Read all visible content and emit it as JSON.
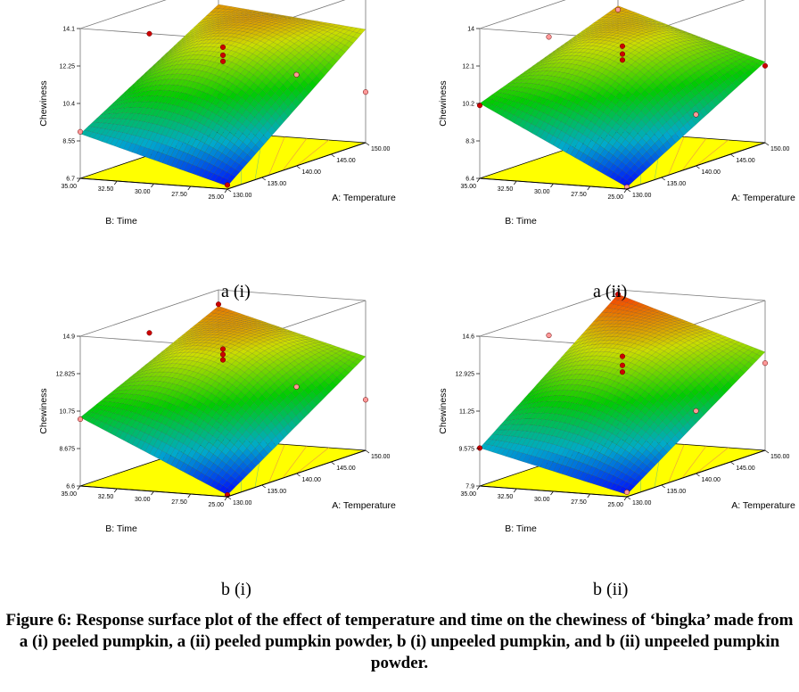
{
  "figure_caption": "Figure 6: Response surface plot of the effect of temperature and time on the chewiness of ‘bingka’ made from a (i) peeled pumpkin, a (ii) peeled pumpkin powder, b (i) unpeeled pumpkin, and b (ii) unpeeled pumpkin powder.",
  "colors": {
    "floor": "#ffff00",
    "point_above": "#cc0000",
    "point_below": "#ff9999",
    "surface_low": "#0000ff",
    "surface_mid": "#00cc00",
    "surface_high": "#ff2200"
  },
  "chart_data": [
    {
      "id": "a-i",
      "caption": "a (i)",
      "type": "surface",
      "zlabel": "Chewiness",
      "xlabel": "A: Temperature",
      "ylabel": "B: Time",
      "x_ticks": [
        "130.00",
        "135.00",
        "140.00",
        "145.00",
        "150.00"
      ],
      "y_ticks": [
        "25.00",
        "27.50",
        "30.00",
        "32.50",
        "35.00"
      ],
      "z_ticks": [
        "6.7",
        "8.55",
        "10.4",
        "12.25",
        "14.1"
      ],
      "xlim": [
        130,
        150
      ],
      "ylim": [
        25,
        35
      ],
      "zlim": [
        6.7,
        14.1
      ],
      "surface_corners": {
        "x_low_y_low": 6.85,
        "x_high_y_low": 12.3,
        "x_low_y_high": 8.9,
        "x_high_y_high": 13.0,
        "x_mid_y_mid": 12.0
      },
      "design_points": [
        {
          "x": 130,
          "y": 25,
          "z": 6.9,
          "above": true
        },
        {
          "x": 150,
          "y": 25,
          "z": 9.2,
          "above": false
        },
        {
          "x": 130,
          "y": 35,
          "z": 9.0,
          "above": false
        },
        {
          "x": 150,
          "y": 35,
          "z": 13.6,
          "above": true
        },
        {
          "x": 140,
          "y": 30,
          "z": 12.3,
          "above": true
        },
        {
          "x": 140,
          "y": 30,
          "z": 11.9,
          "above": true
        },
        {
          "x": 140,
          "y": 30,
          "z": 11.6,
          "above": true
        },
        {
          "x": 140,
          "y": 25,
          "z": 11.2,
          "above": false
        },
        {
          "x": 140,
          "y": 35,
          "z": 12.7,
          "above": true
        }
      ]
    },
    {
      "id": "a-ii",
      "caption": "a (ii)",
      "type": "surface",
      "zlabel": "Chewiness",
      "xlabel": "A: Temperature",
      "ylabel": "B: Time",
      "x_ticks": [
        "130.00",
        "135.00",
        "140.00",
        "145.00",
        "150.00"
      ],
      "y_ticks": [
        "25.00",
        "27.50",
        "30.00",
        "32.50",
        "35.00"
      ],
      "z_ticks": [
        "6.4",
        "8.3",
        "10.2",
        "12.1",
        "14"
      ],
      "xlim": [
        130,
        150
      ],
      "ylim": [
        25,
        35
      ],
      "zlim": [
        6.4,
        14.0
      ],
      "surface_corners": {
        "x_low_y_low": 6.5,
        "x_high_y_low": 10.5,
        "x_low_y_high": 10.2,
        "x_high_y_high": 12.8,
        "x_mid_y_mid": 11.8
      },
      "design_points": [
        {
          "x": 130,
          "y": 25,
          "z": 6.5,
          "above": false
        },
        {
          "x": 150,
          "y": 25,
          "z": 10.3,
          "above": true
        },
        {
          "x": 130,
          "y": 35,
          "z": 10.1,
          "above": true
        },
        {
          "x": 150,
          "y": 35,
          "z": 12.6,
          "above": false
        },
        {
          "x": 140,
          "y": 30,
          "z": 12.2,
          "above": true
        },
        {
          "x": 140,
          "y": 30,
          "z": 11.8,
          "above": true
        },
        {
          "x": 140,
          "y": 30,
          "z": 11.5,
          "above": true
        },
        {
          "x": 140,
          "y": 25,
          "z": 9.0,
          "above": false
        },
        {
          "x": 140,
          "y": 35,
          "z": 12.4,
          "above": false
        }
      ]
    },
    {
      "id": "b-i",
      "caption": "b (i)",
      "type": "surface",
      "zlabel": "Chewiness",
      "xlabel": "A: Temperature",
      "ylabel": "B: Time",
      "x_ticks": [
        "130.00",
        "135.00",
        "140.00",
        "145.00",
        "150.00"
      ],
      "y_ticks": [
        "25.00",
        "27.50",
        "30.00",
        "32.50",
        "35.00"
      ],
      "z_ticks": [
        "6.6",
        "8.675",
        "10.75",
        "12.825",
        "14.9"
      ],
      "xlim": [
        130,
        150
      ],
      "ylim": [
        25,
        35
      ],
      "zlim": [
        6.6,
        14.9
      ],
      "surface_corners": {
        "x_low_y_low": 6.7,
        "x_high_y_low": 11.8,
        "x_low_y_high": 10.4,
        "x_high_y_high": 14.0,
        "x_mid_y_mid": 12.6
      },
      "design_points": [
        {
          "x": 130,
          "y": 25,
          "z": 6.7,
          "above": true
        },
        {
          "x": 150,
          "y": 25,
          "z": 9.4,
          "above": false
        },
        {
          "x": 130,
          "y": 35,
          "z": 10.3,
          "above": false
        },
        {
          "x": 150,
          "y": 35,
          "z": 14.1,
          "above": true
        },
        {
          "x": 140,
          "y": 30,
          "z": 13.2,
          "above": true
        },
        {
          "x": 140,
          "y": 30,
          "z": 12.9,
          "above": true
        },
        {
          "x": 140,
          "y": 30,
          "z": 12.6,
          "above": true
        },
        {
          "x": 140,
          "y": 25,
          "z": 11.4,
          "above": false
        },
        {
          "x": 140,
          "y": 35,
          "z": 13.8,
          "above": true
        }
      ]
    },
    {
      "id": "b-ii",
      "caption": "b (ii)",
      "type": "surface",
      "zlabel": "Chewiness",
      "xlabel": "A: Temperature",
      "ylabel": "B: Time",
      "x_ticks": [
        "130.00",
        "135.00",
        "140.00",
        "145.00",
        "150.00"
      ],
      "y_ticks": [
        "25.00",
        "27.50",
        "30.00",
        "32.50",
        "35.00"
      ],
      "z_ticks": [
        "7.9",
        "9.575",
        "11.25",
        "12.925",
        "14.6"
      ],
      "xlim": [
        130,
        150
      ],
      "ylim": [
        25,
        35
      ],
      "zlim": [
        7.9,
        14.6
      ],
      "surface_corners": {
        "x_low_y_low": 8.0,
        "x_high_y_low": 12.3,
        "x_low_y_high": 9.6,
        "x_high_y_high": 14.4,
        "x_mid_y_mid": 12.5
      },
      "design_points": [
        {
          "x": 130,
          "y": 25,
          "z": 8.1,
          "above": false
        },
        {
          "x": 150,
          "y": 25,
          "z": 11.8,
          "above": false
        },
        {
          "x": 130,
          "y": 35,
          "z": 9.6,
          "above": true
        },
        {
          "x": 150,
          "y": 35,
          "z": 14.4,
          "above": true
        },
        {
          "x": 140,
          "y": 30,
          "z": 12.9,
          "above": true
        },
        {
          "x": 140,
          "y": 30,
          "z": 12.5,
          "above": true
        },
        {
          "x": 140,
          "y": 30,
          "z": 12.2,
          "above": true
        },
        {
          "x": 140,
          "y": 25,
          "z": 10.7,
          "above": false
        },
        {
          "x": 140,
          "y": 35,
          "z": 13.6,
          "above": false
        }
      ]
    }
  ]
}
